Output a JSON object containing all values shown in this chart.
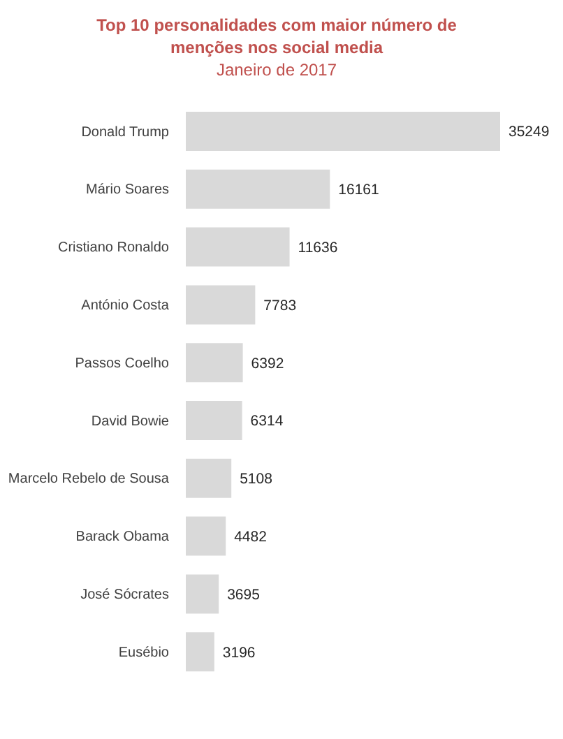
{
  "chart_data": {
    "type": "bar",
    "orientation": "horizontal",
    "title": "Top 10 personalidades com maior número de menções nos social media",
    "subtitle": "Janeiro de 2017",
    "categories": [
      "Donald Trump",
      "Mário Soares",
      "Cristiano Ronaldo",
      "António Costa",
      "Passos Coelho",
      "David Bowie",
      "Marcelo Rebelo de Sousa",
      "Barack Obama",
      "José Sócrates",
      "Eusébio"
    ],
    "values": [
      35249,
      16161,
      11636,
      7783,
      6392,
      6314,
      5108,
      4482,
      3695,
      3196
    ],
    "color": "#d9d9d9",
    "data_labels": true
  }
}
